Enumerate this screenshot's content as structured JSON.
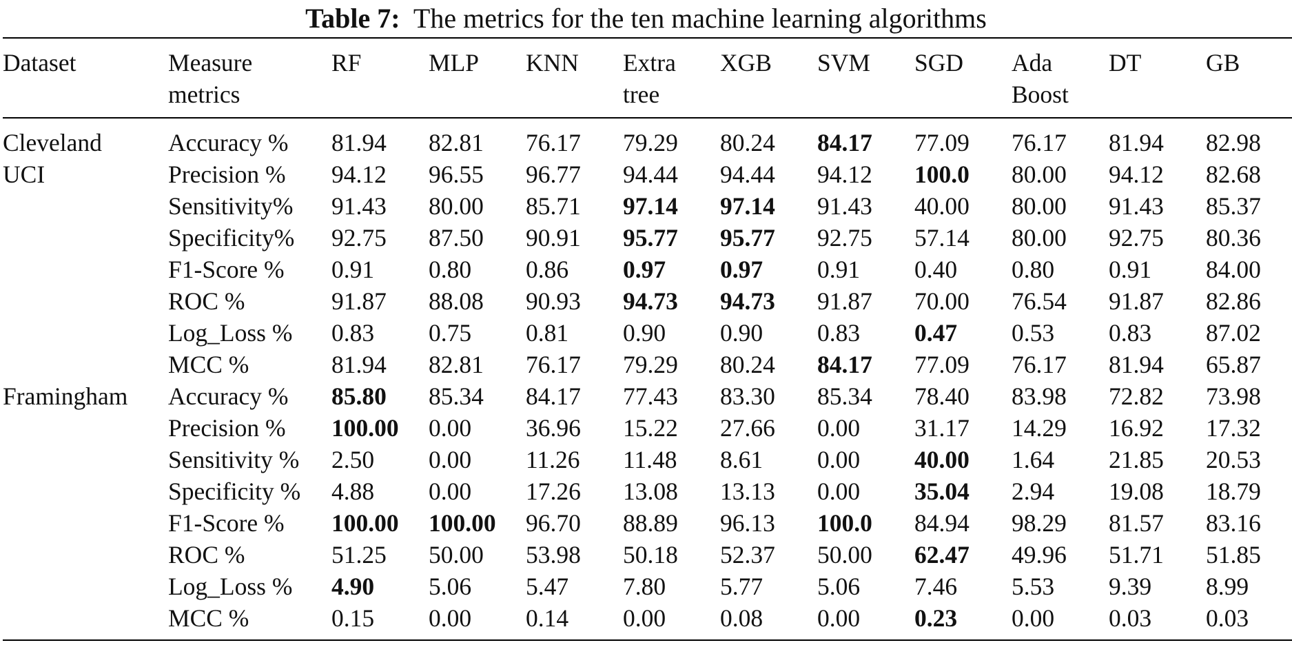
{
  "caption": {
    "label": "Table 7:",
    "text": "The metrics for the ten machine learning algorithms"
  },
  "headers": [
    "Dataset",
    "Measure metrics",
    "RF",
    "MLP",
    "KNN",
    "Extra tree",
    "XGB",
    "SVM",
    "SGD",
    "Ada Boost",
    "DT",
    "GB"
  ],
  "rows": [
    {
      "dataset": "Cleveland",
      "metric": "Accuracy %",
      "values": [
        "81.94",
        "82.81",
        "76.17",
        "79.29",
        "80.24",
        "84.17",
        "77.09",
        "76.17",
        "81.94",
        "82.98"
      ],
      "bold": [
        5
      ]
    },
    {
      "dataset": "UCI",
      "metric": "Precision %",
      "values": [
        "94.12",
        "96.55",
        "96.77",
        "94.44",
        "94.44",
        "94.12",
        "100.0",
        "80.00",
        "94.12",
        "82.68"
      ],
      "bold": [
        6
      ]
    },
    {
      "dataset": "",
      "metric": "Sensitivity%",
      "values": [
        "91.43",
        "80.00",
        "85.71",
        "97.14",
        "97.14",
        "91.43",
        "40.00",
        "80.00",
        "91.43",
        "85.37"
      ],
      "bold": [
        3,
        4
      ]
    },
    {
      "dataset": "",
      "metric": "Specificity%",
      "values": [
        "92.75",
        "87.50",
        "90.91",
        "95.77",
        "95.77",
        "92.75",
        "57.14",
        "80.00",
        "92.75",
        "80.36"
      ],
      "bold": [
        3,
        4
      ]
    },
    {
      "dataset": "",
      "metric": "F1-Score %",
      "values": [
        "0.91",
        "0.80",
        "0.86",
        "0.97",
        "0.97",
        "0.91",
        "0.40",
        "0.80",
        "0.91",
        "84.00"
      ],
      "bold": [
        3,
        4
      ]
    },
    {
      "dataset": "",
      "metric": "ROC %",
      "values": [
        "91.87",
        "88.08",
        "90.93",
        "94.73",
        "94.73",
        "91.87",
        "70.00",
        "76.54",
        "91.87",
        "82.86"
      ],
      "bold": [
        3,
        4
      ]
    },
    {
      "dataset": "",
      "metric": "Log_Loss %",
      "values": [
        "0.83",
        "0.75",
        "0.81",
        "0.90",
        "0.90",
        "0.83",
        "0.47",
        "0.53",
        "0.83",
        "87.02"
      ],
      "bold": [
        6
      ]
    },
    {
      "dataset": "",
      "metric": "MCC %",
      "values": [
        "81.94",
        "82.81",
        "76.17",
        "79.29",
        "80.24",
        "84.17",
        "77.09",
        "76.17",
        "81.94",
        "65.87"
      ],
      "bold": [
        5
      ]
    },
    {
      "dataset": "Framingham",
      "metric": "Accuracy %",
      "values": [
        "85.80",
        "85.34",
        "84.17",
        "77.43",
        "83.30",
        "85.34",
        "78.40",
        "83.98",
        "72.82",
        "73.98"
      ],
      "bold": [
        0
      ]
    },
    {
      "dataset": "",
      "metric": "Precision %",
      "values": [
        "100.00",
        "0.00",
        "36.96",
        "15.22",
        "27.66",
        "0.00",
        "31.17",
        "14.29",
        "16.92",
        "17.32"
      ],
      "bold": [
        0
      ]
    },
    {
      "dataset": "",
      "metric": "Sensitivity %",
      "values": [
        "2.50",
        "0.00",
        "11.26",
        "11.48",
        "8.61",
        "0.00",
        "40.00",
        "1.64",
        "21.85",
        "20.53"
      ],
      "bold": [
        6
      ]
    },
    {
      "dataset": "",
      "metric": "Specificity %",
      "values": [
        "4.88",
        "0.00",
        "17.26",
        "13.08",
        "13.13",
        "0.00",
        "35.04",
        "2.94",
        "19.08",
        "18.79"
      ],
      "bold": [
        6
      ]
    },
    {
      "dataset": "",
      "metric": "F1-Score %",
      "values": [
        "100.00",
        "100.00",
        "96.70",
        "88.89",
        "96.13",
        "100.0",
        "84.94",
        "98.29",
        "81.57",
        "83.16"
      ],
      "bold": [
        0,
        1,
        5
      ]
    },
    {
      "dataset": "",
      "metric": "ROC %",
      "values": [
        "51.25",
        "50.00",
        "53.98",
        "50.18",
        "52.37",
        "50.00",
        "62.47",
        "49.96",
        "51.71",
        "51.85"
      ],
      "bold": [
        6
      ]
    },
    {
      "dataset": "",
      "metric": "Log_Loss %",
      "values": [
        "4.90",
        "5.06",
        "5.47",
        "7.80",
        "5.77",
        "5.06",
        "7.46",
        "5.53",
        "9.39",
        "8.99"
      ],
      "bold": [
        0
      ]
    },
    {
      "dataset": "",
      "metric": "MCC %",
      "values": [
        "0.15",
        "0.00",
        "0.14",
        "0.00",
        "0.08",
        "0.00",
        "0.23",
        "0.00",
        "0.03",
        "0.03"
      ],
      "bold": [
        6
      ]
    }
  ]
}
